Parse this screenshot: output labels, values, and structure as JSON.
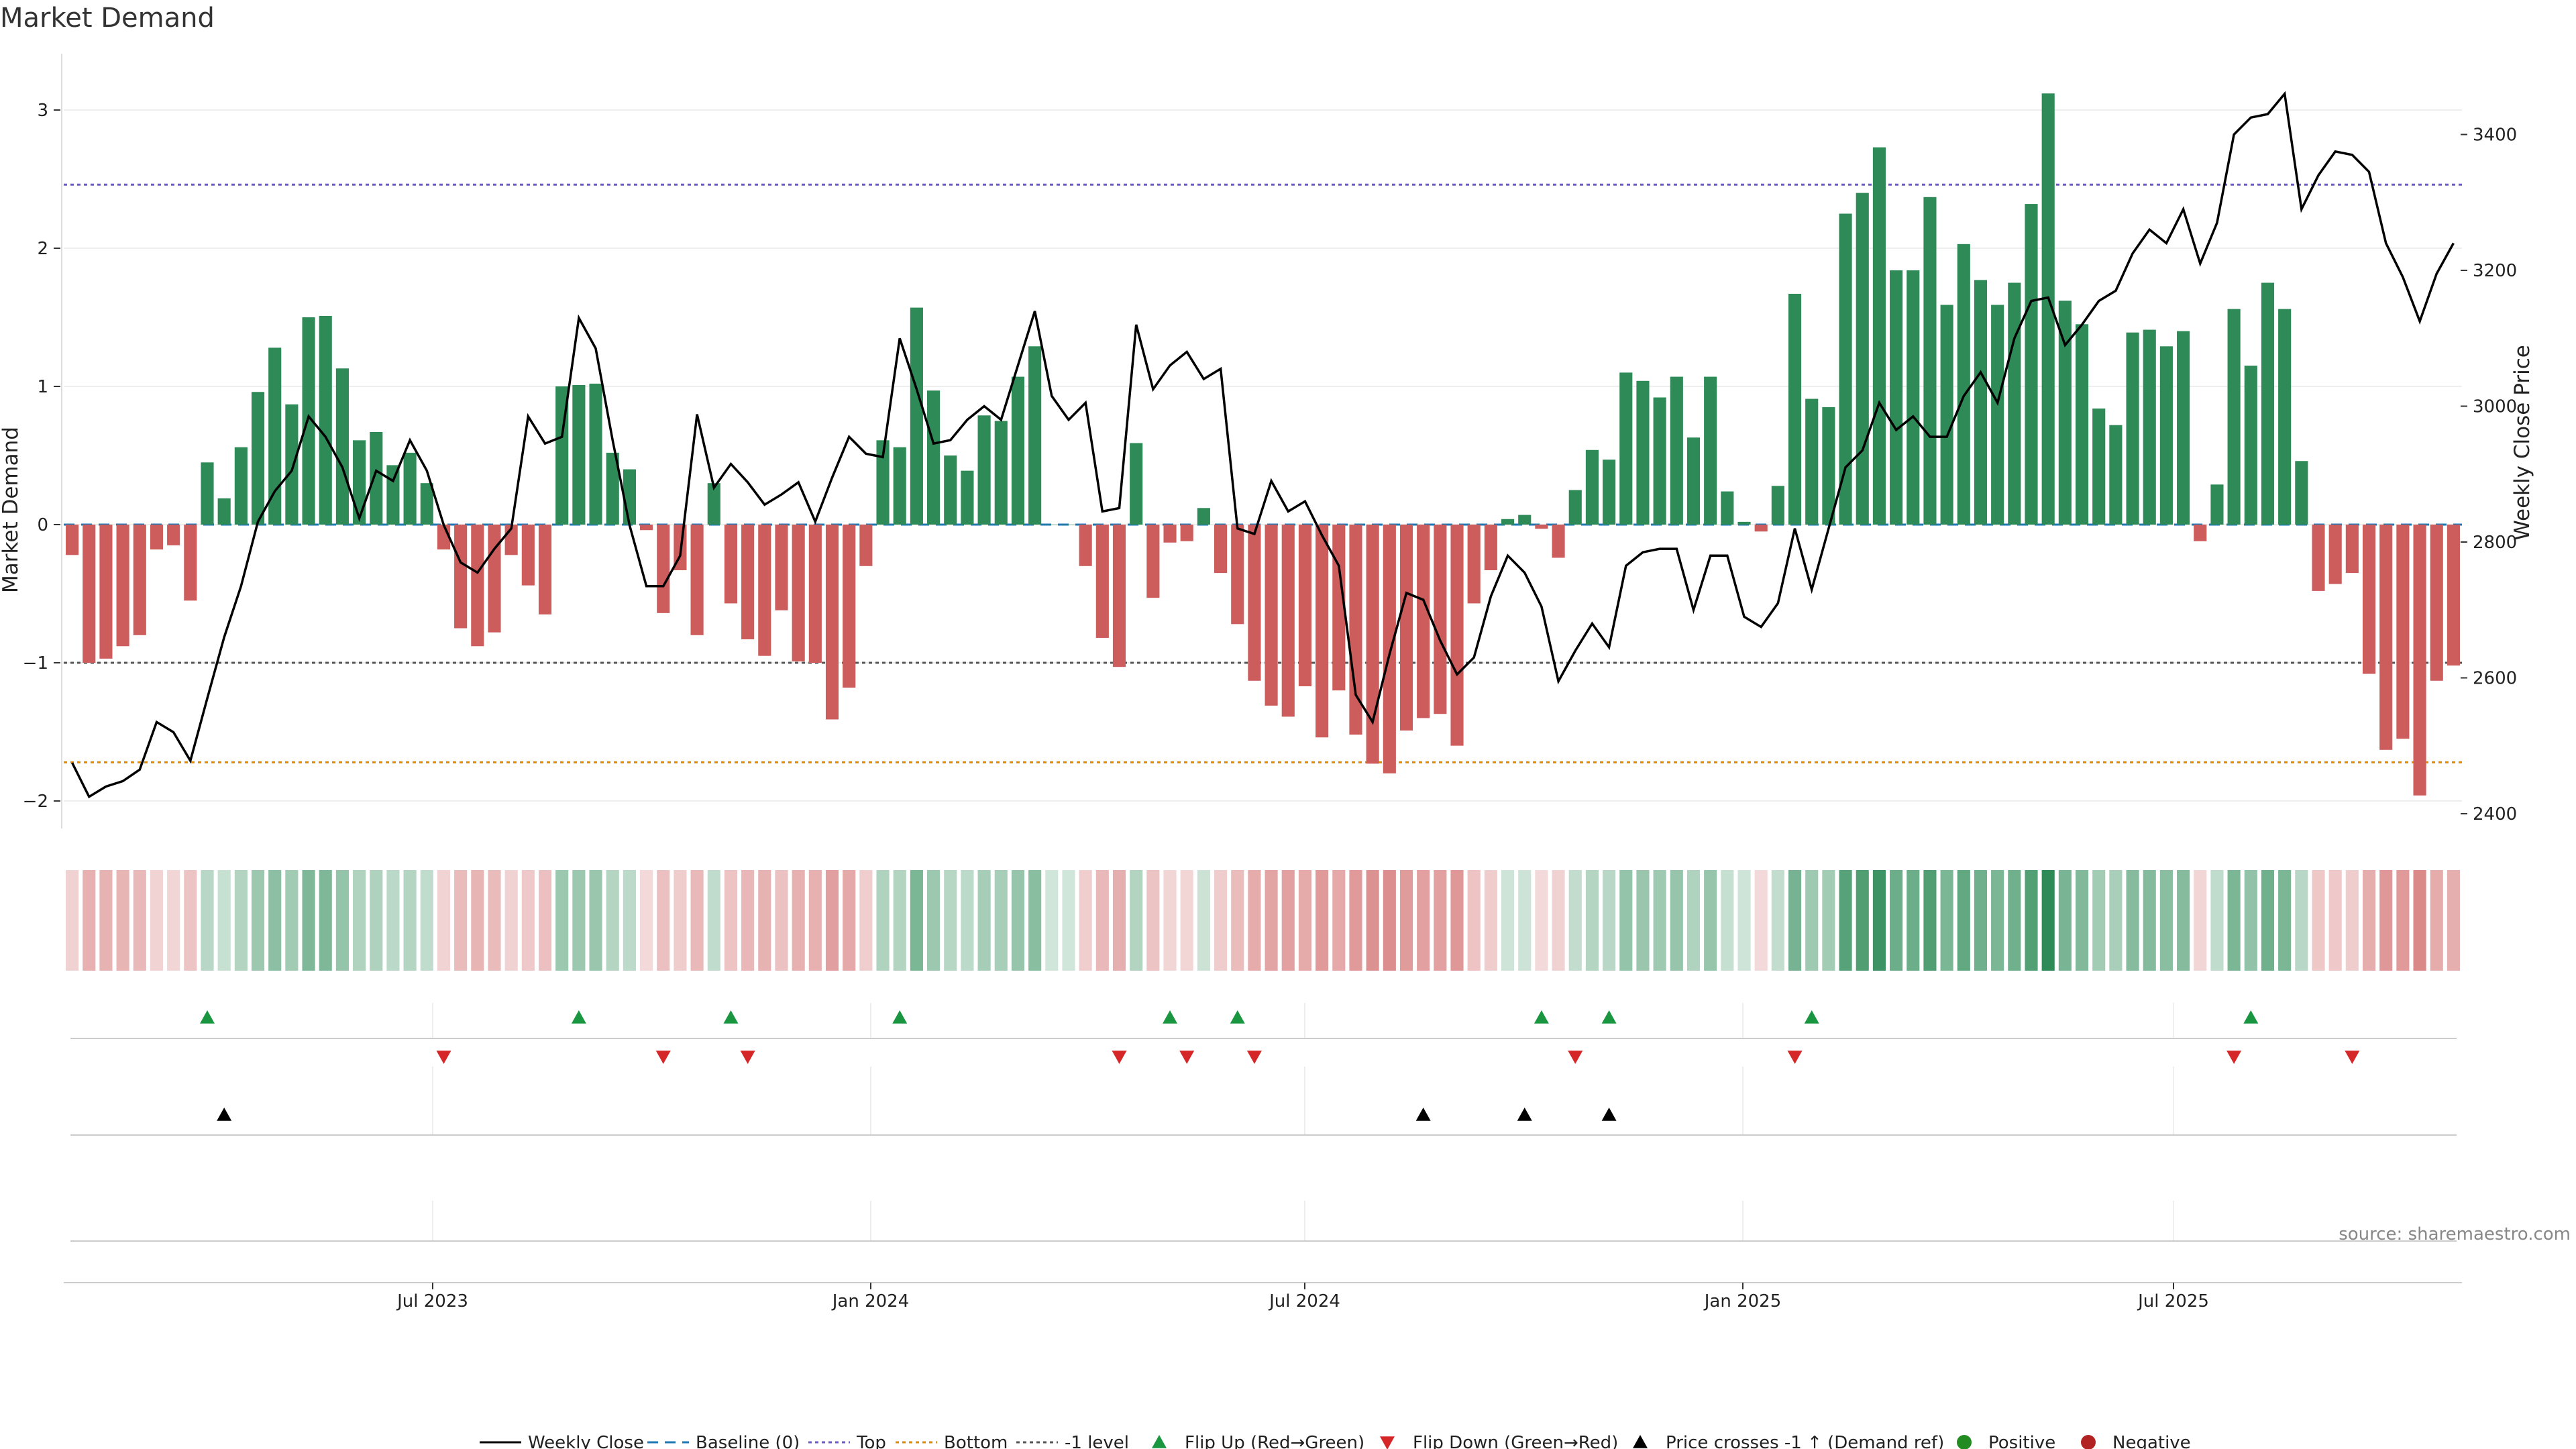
{
  "title": "Market Demand",
  "source_note": "source: sharemaestro.com",
  "colors": {
    "positive": "#2e8b57",
    "negative": "#cd5c5c",
    "price": "#000000",
    "top": "#6a5acd",
    "bottom": "#e08a00",
    "minus1": "#555555",
    "baseline": "#1f77b4",
    "flip_up": "#1a9641",
    "flip_down": "#d62728",
    "cross": "#000000",
    "legend_positive": "#228b22",
    "legend_negative": "#b22222"
  },
  "chart_data": {
    "type": "bar",
    "x_type": "weekly dates",
    "x_ticks": [
      "Jul 2023",
      "Jan 2024",
      "Jul 2024",
      "Jan 2025",
      "Jul 2025"
    ],
    "left_axis": {
      "label": "Market Demand",
      "ticks": [
        -2,
        -1,
        0,
        1,
        2,
        3
      ],
      "range": [
        -2.2,
        3.4
      ]
    },
    "right_axis": {
      "label": "Weekly Close Price",
      "ticks": [
        2400,
        2600,
        2800,
        3000,
        3200,
        3400
      ],
      "range": [
        2395,
        3515
      ]
    },
    "reference_lines": {
      "top": 2.46,
      "bottom": -1.72,
      "minus1": -1.0,
      "baseline": 0
    },
    "demand": [
      -0.22,
      -1.0,
      -0.97,
      -0.88,
      -0.8,
      -0.18,
      -0.15,
      -0.55,
      0.45,
      0.19,
      0.56,
      0.96,
      1.28,
      0.87,
      1.5,
      1.51,
      1.13,
      0.61,
      0.67,
      0.43,
      0.52,
      0.3,
      -0.18,
      -0.75,
      -0.88,
      -0.78,
      -0.22,
      -0.44,
      -0.65,
      1.0,
      1.01,
      1.02,
      0.52,
      0.4,
      -0.04,
      -0.64,
      -0.33,
      -0.8,
      0.3,
      -0.57,
      -0.83,
      -0.95,
      -0.62,
      -0.99,
      -1.0,
      -1.41,
      -1.18,
      -0.3,
      0.61,
      0.56,
      1.57,
      0.97,
      0.5,
      0.39,
      0.79,
      0.75,
      1.07,
      1.29,
      0.0,
      0.0,
      -0.3,
      -0.82,
      -1.03,
      0.59,
      -0.53,
      -0.13,
      -0.12,
      0.12,
      -0.35,
      -0.72,
      -1.13,
      -1.31,
      -1.39,
      -1.17,
      -1.54,
      -1.2,
      -1.52,
      -1.73,
      -1.8,
      -1.49,
      -1.4,
      -1.37,
      -1.6,
      -0.57,
      -0.33,
      0.04,
      0.07,
      -0.03,
      -0.24,
      0.25,
      0.54,
      0.47,
      1.1,
      1.04,
      0.92,
      1.07,
      0.63,
      1.07,
      0.24,
      0.02,
      -0.05,
      0.28,
      1.67,
      0.91,
      0.85,
      2.25,
      2.4,
      2.73,
      1.84,
      1.84,
      2.37,
      1.59,
      2.03,
      1.77,
      1.59,
      1.75,
      2.32,
      3.12,
      1.62,
      1.45,
      0.84,
      0.72,
      1.39,
      1.41,
      1.29,
      1.4,
      -0.12,
      0.29,
      1.56,
      1.15,
      1.75,
      1.56,
      0.46,
      -0.48,
      -0.43,
      -0.35,
      -1.08,
      -1.63,
      -1.55,
      -1.96,
      -1.13,
      -1.02
    ],
    "price": [
      2475,
      2425,
      2440,
      2448,
      2465,
      2535,
      2520,
      2478,
      2570,
      2660,
      2735,
      2830,
      2875,
      2905,
      2985,
      2955,
      2910,
      2835,
      2905,
      2890,
      2950,
      2905,
      2825,
      2770,
      2755,
      2790,
      2820,
      2985,
      2945,
      2955,
      3130,
      3085,
      2950,
      2825,
      2735,
      2735,
      2780,
      2988,
      2880,
      2915,
      2888,
      2855,
      2870,
      2888,
      2830,
      2895,
      2955,
      2930,
      2925,
      3100,
      3025,
      2945,
      2950,
      2980,
      3000,
      2980,
      3060,
      3140,
      3015,
      2980,
      3005,
      2845,
      2850,
      3120,
      3025,
      3060,
      3080,
      3040,
      3055,
      2820,
      2812,
      2890,
      2845,
      2860,
      2810,
      2765,
      2575,
      2535,
      2635,
      2725,
      2715,
      2655,
      2605,
      2630,
      2720,
      2780,
      2755,
      2705,
      2595,
      2640,
      2680,
      2645,
      2765,
      2785,
      2790,
      2790,
      2700,
      2780,
      2780,
      2690,
      2675,
      2710,
      2820,
      2730,
      2820,
      2910,
      2935,
      3005,
      2965,
      2985,
      2955,
      2955,
      3015,
      3050,
      3005,
      3100,
      3155,
      3160,
      3090,
      3120,
      3155,
      3170,
      3225,
      3260,
      3240,
      3290,
      3210,
      3270,
      3400,
      3425,
      3430,
      3460,
      3290,
      3340,
      3375,
      3370,
      3345,
      3240,
      3190,
      3125,
      3195,
      3240
    ],
    "flip_up_index": [
      8,
      30,
      39,
      49,
      65,
      69,
      87,
      91,
      103,
      129
    ],
    "flip_down_index": [
      22,
      35,
      40,
      62,
      66,
      70,
      89,
      102,
      128,
      135
    ],
    "price_cross_up_index": [
      9,
      80,
      86,
      91
    ],
    "legend": [
      "Weekly Close",
      "Baseline (0)",
      "Top",
      "Bottom",
      "-1 level",
      "Flip Up (Red→Green)",
      "Flip Down (Green→Red)",
      "Price crosses -1 ↑ (Demand ref)",
      "Positive",
      "Negative"
    ]
  }
}
